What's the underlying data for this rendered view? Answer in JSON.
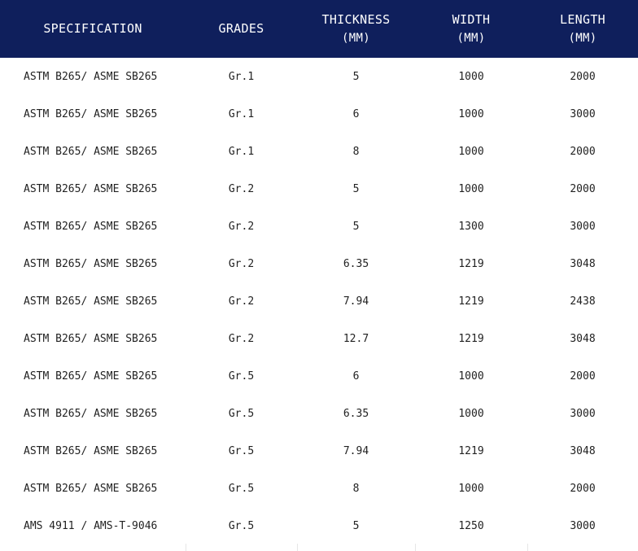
{
  "table": {
    "headers": [
      {
        "label": "SPECIFICATION",
        "unit": ""
      },
      {
        "label": "GRADES",
        "unit": ""
      },
      {
        "label": "THICKNESS",
        "unit": "(MM)"
      },
      {
        "label": "WIDTH",
        "unit": "(MM)"
      },
      {
        "label": "LENGTH",
        "unit": "(MM)"
      }
    ],
    "rows": [
      [
        "ASTM B265/ ASME SB265",
        "Gr.1",
        "5",
        "1000",
        "2000"
      ],
      [
        "ASTM B265/ ASME SB265",
        "Gr.1",
        "6",
        "1000",
        "3000"
      ],
      [
        "ASTM B265/ ASME SB265",
        "Gr.1",
        "8",
        "1000",
        "2000"
      ],
      [
        "ASTM B265/ ASME SB265",
        "Gr.2",
        "5",
        "1000",
        "2000"
      ],
      [
        "ASTM B265/ ASME SB265",
        "Gr.2",
        "5",
        "1300",
        "3000"
      ],
      [
        "ASTM B265/ ASME SB265",
        "Gr.2",
        "6.35",
        "1219",
        "3048"
      ],
      [
        "ASTM B265/ ASME SB265",
        "Gr.2",
        "7.94",
        "1219",
        "2438"
      ],
      [
        "ASTM B265/ ASME SB265",
        "Gr.2",
        "12.7",
        "1219",
        "3048"
      ],
      [
        "ASTM B265/ ASME SB265",
        "Gr.5",
        "6",
        "1000",
        "2000"
      ],
      [
        "ASTM B265/ ASME SB265",
        "Gr.5",
        "6.35",
        "1000",
        "3000"
      ],
      [
        "ASTM B265/ ASME SB265",
        "Gr.5",
        "7.94",
        "1219",
        "3048"
      ],
      [
        "ASTM B265/ ASME SB265",
        "Gr.5",
        "8",
        "1000",
        "2000"
      ],
      [
        "AMS 4911 / AMS-T-9046",
        "Gr.5",
        "5",
        "1250",
        "3000"
      ]
    ]
  },
  "colors": {
    "header_background": "#0f1f5c",
    "header_text": "#ffffff",
    "body_text": "#222222"
  }
}
